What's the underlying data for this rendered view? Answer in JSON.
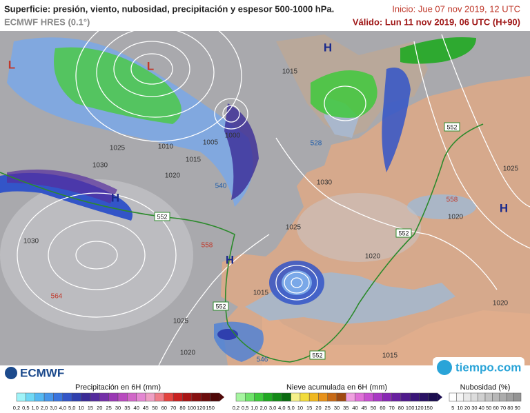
{
  "header": {
    "title": "Superficie: presión, viento, nubosidad, precipitación y espesor 500-1000 hPa.",
    "model": "ECMWF HRES (0.1°)",
    "init": "Inicio: Jue 07 nov 2019, 12 UTC",
    "valid": "Válido: Lun 11 nov 2019, 06 UTC (H+90)"
  },
  "map": {
    "labels": [
      "L",
      "L",
      "H",
      "H",
      "H",
      "H",
      "1015",
      "1025",
      "1030",
      "1010",
      "1005",
      "1000",
      "1015",
      "1020",
      "1030",
      "1025",
      "1020",
      "1020",
      "1025",
      "1015",
      "1025",
      "1020",
      "1015",
      "1020",
      "1030",
      "558",
      "564",
      "546",
      "540",
      "528",
      "558"
    ],
    "thickness_boxes": [
      "552",
      "552",
      "552",
      "552",
      "552"
    ]
  },
  "logos": {
    "left": "ECMWF",
    "right": "tiempo.com"
  },
  "legends": [
    {
      "title": "Precipitación en 6H (mm)",
      "ticks": [
        "0,2",
        "0,5",
        "1,0",
        "2,0",
        "3,0",
        "4,0",
        "5,0",
        "10",
        "15",
        "20",
        "25",
        "30",
        "35",
        "40",
        "45",
        "50",
        "60",
        "70",
        "80",
        "100",
        "120",
        "150"
      ],
      "colors": [
        "#9ff3f8",
        "#6fd8f5",
        "#55b8f2",
        "#4796ea",
        "#3a74de",
        "#3355c8",
        "#2f3fae",
        "#3a2a96",
        "#552c9c",
        "#7530a8",
        "#9a38b4",
        "#b94bbf",
        "#d167c8",
        "#e487d2",
        "#ef9fc4",
        "#f07d8a",
        "#e4433f",
        "#c92020",
        "#a81414",
        "#861010",
        "#6b0c0c",
        "#4f0808"
      ]
    },
    {
      "title": "Nieve acumulada en 6H (mm)",
      "ticks": [
        "0,2",
        "0,5",
        "1,0",
        "2,0",
        "3,0",
        "4,0",
        "5,0",
        "10",
        "15",
        "20",
        "25",
        "30",
        "35",
        "40",
        "45",
        "50",
        "60",
        "70",
        "80",
        "100",
        "120",
        "150"
      ],
      "colors": [
        "#a6f5a0",
        "#6fe36a",
        "#3fc93c",
        "#20a822",
        "#128a16",
        "#0a6b10",
        "#f5f08a",
        "#f2dc3c",
        "#f0b820",
        "#e8921a",
        "#c86a16",
        "#a04a12",
        "#f0a0e0",
        "#e070d8",
        "#c850d0",
        "#a838c4",
        "#8828b4",
        "#6820a0",
        "#501a8c",
        "#3a1678",
        "#2a1264",
        "#1c0e50"
      ]
    },
    {
      "title": "Nubosidad (%)",
      "ticks": [
        "5",
        "10",
        "20",
        "30",
        "40",
        "50",
        "60",
        "70",
        "80",
        "90"
      ],
      "colors": [
        "#ffffff",
        "#f4f4f4",
        "#e8e8e8",
        "#dcdcdc",
        "#d0d0d0",
        "#c4c4c4",
        "#b8b8b8",
        "#acacac",
        "#a0a0a0",
        "#949494"
      ]
    }
  ]
}
